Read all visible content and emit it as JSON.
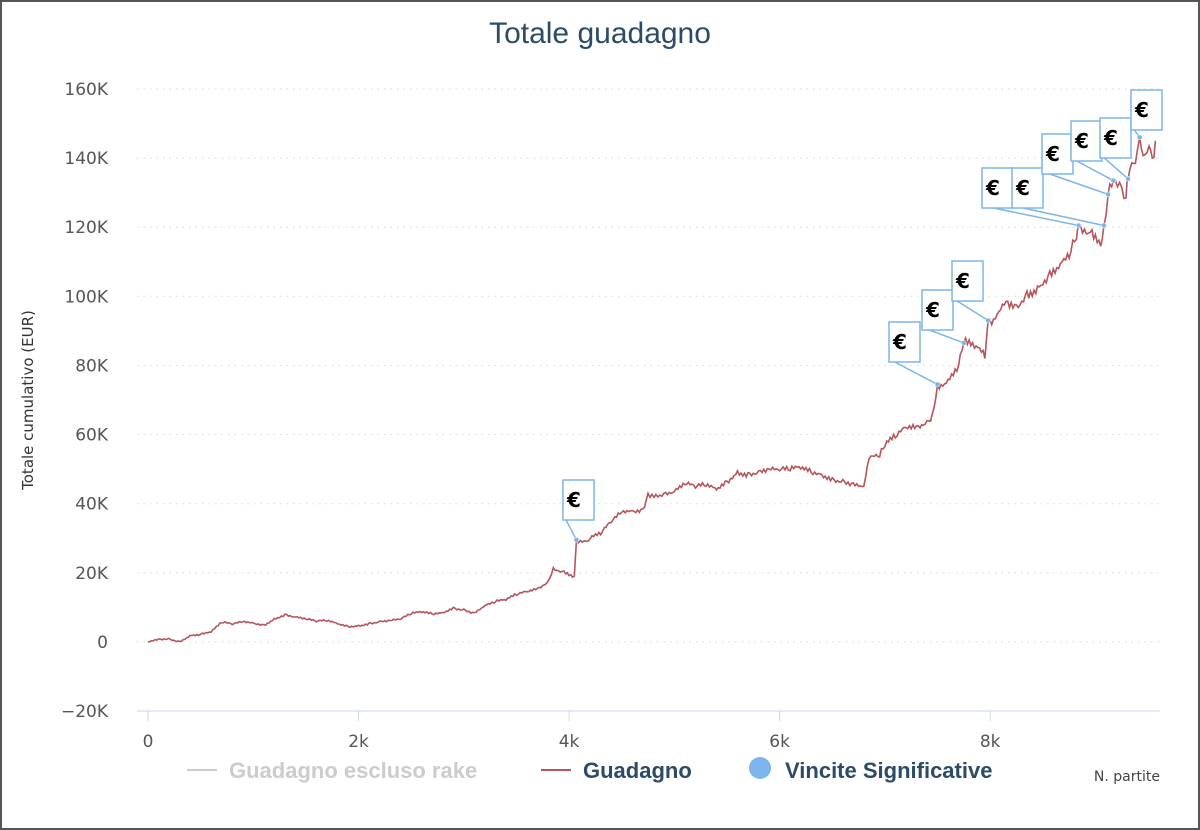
{
  "chart_data": {
    "type": "line",
    "title": "Totale guadagno",
    "xlabel": "N. partite",
    "ylabel": "Totale cumulativo (EUR)",
    "xlim": [
      0,
      9600
    ],
    "ylim": [
      -20000,
      160000
    ],
    "x_ticks": [
      {
        "value": 0,
        "label": "0"
      },
      {
        "value": 2000,
        "label": "2k"
      },
      {
        "value": 4000,
        "label": "4k"
      },
      {
        "value": 6000,
        "label": "6k"
      },
      {
        "value": 8000,
        "label": "8k"
      }
    ],
    "y_ticks": [
      {
        "value": -20000,
        "label": "−20K"
      },
      {
        "value": 0,
        "label": "0"
      },
      {
        "value": 20000,
        "label": "20K"
      },
      {
        "value": 40000,
        "label": "40K"
      },
      {
        "value": 60000,
        "label": "60K"
      },
      {
        "value": 80000,
        "label": "80K"
      },
      {
        "value": 100000,
        "label": "100K"
      },
      {
        "value": 120000,
        "label": "120K"
      },
      {
        "value": 140000,
        "label": "140K"
      },
      {
        "value": 160000,
        "label": "160K"
      }
    ],
    "grid": true,
    "legend_position": "bottom",
    "series": [
      {
        "name": "Guadagno escluso rake",
        "color": "#cccccc",
        "hidden": true,
        "points": []
      },
      {
        "name": "Guadagno",
        "color": "#b5565b",
        "points": [
          [
            0,
            0
          ],
          [
            100,
            800
          ],
          [
            200,
            1000
          ],
          [
            300,
            200
          ],
          [
            400,
            1900
          ],
          [
            500,
            2200
          ],
          [
            600,
            2800
          ],
          [
            700,
            5500
          ],
          [
            800,
            5000
          ],
          [
            900,
            5800
          ],
          [
            1000,
            5500
          ],
          [
            1100,
            5000
          ],
          [
            1200,
            6800
          ],
          [
            1300,
            8000
          ],
          [
            1400,
            7200
          ],
          [
            1500,
            6500
          ],
          [
            1600,
            5800
          ],
          [
            1700,
            6000
          ],
          [
            1800,
            5200
          ],
          [
            1900,
            4500
          ],
          [
            2000,
            4800
          ],
          [
            2100,
            5500
          ],
          [
            2200,
            6000
          ],
          [
            2300,
            6200
          ],
          [
            2400,
            6500
          ],
          [
            2500,
            8000
          ],
          [
            2600,
            8500
          ],
          [
            2700,
            8000
          ],
          [
            2800,
            8500
          ],
          [
            2900,
            10000
          ],
          [
            3000,
            9500
          ],
          [
            3100,
            8500
          ],
          [
            3200,
            10500
          ],
          [
            3300,
            11500
          ],
          [
            3400,
            12000
          ],
          [
            3500,
            13500
          ],
          [
            3600,
            14500
          ],
          [
            3700,
            15500
          ],
          [
            3800,
            17500
          ],
          [
            3850,
            21500
          ],
          [
            3950,
            20500
          ],
          [
            4050,
            19000
          ],
          [
            4070,
            29500
          ],
          [
            4200,
            29800
          ],
          [
            4300,
            31000
          ],
          [
            4400,
            34500
          ],
          [
            4500,
            37500
          ],
          [
            4600,
            38000
          ],
          [
            4700,
            38500
          ],
          [
            4750,
            43000
          ],
          [
            4900,
            43000
          ],
          [
            5000,
            43500
          ],
          [
            5100,
            45500
          ],
          [
            5200,
            44500
          ],
          [
            5300,
            45000
          ],
          [
            5400,
            44000
          ],
          [
            5500,
            46500
          ],
          [
            5600,
            49500
          ],
          [
            5700,
            49000
          ],
          [
            5800,
            49500
          ],
          [
            5900,
            50000
          ],
          [
            6000,
            49500
          ],
          [
            6100,
            49500
          ],
          [
            6200,
            50000
          ],
          [
            6300,
            49000
          ],
          [
            6400,
            48500
          ],
          [
            6500,
            47500
          ],
          [
            6600,
            47000
          ],
          [
            6700,
            46000
          ],
          [
            6800,
            45000
          ],
          [
            6850,
            53000
          ],
          [
            6950,
            53500
          ],
          [
            7000,
            56500
          ],
          [
            7100,
            59000
          ],
          [
            7200,
            62000
          ],
          [
            7300,
            62500
          ],
          [
            7400,
            64000
          ],
          [
            7450,
            66000
          ],
          [
            7500,
            74500
          ],
          [
            7600,
            76000
          ],
          [
            7700,
            80000
          ],
          [
            7750,
            86500
          ],
          [
            7850,
            85000
          ],
          [
            7950,
            82000
          ],
          [
            7980,
            93000
          ],
          [
            8050,
            93500
          ],
          [
            8150,
            98500
          ],
          [
            8250,
            97500
          ],
          [
            8350,
            101500
          ],
          [
            8450,
            103000
          ],
          [
            8550,
            106000
          ],
          [
            8650,
            108000
          ],
          [
            8750,
            111000
          ],
          [
            8820,
            116500
          ],
          [
            8840,
            120500
          ],
          [
            8950,
            118500
          ],
          [
            9050,
            114500
          ],
          [
            9080,
            120500
          ],
          [
            9120,
            129500
          ],
          [
            9170,
            133500
          ],
          [
            9250,
            131500
          ],
          [
            9290,
            128500
          ],
          [
            9310,
            134000
          ],
          [
            9380,
            138500
          ],
          [
            9420,
            146000
          ],
          [
            9470,
            141000
          ],
          [
            9510,
            143500
          ],
          [
            9540,
            140000
          ],
          [
            9570,
            145000
          ]
        ]
      },
      {
        "name": "Vincite Significative",
        "color": "#7cb5ec",
        "flag_label": "€",
        "points": [
          [
            4070,
            29500
          ],
          [
            7500,
            74500
          ],
          [
            7750,
            86500
          ],
          [
            7980,
            93000
          ],
          [
            8840,
            120500
          ],
          [
            9080,
            120500
          ],
          [
            9120,
            129500
          ],
          [
            9170,
            133500
          ],
          [
            9310,
            134000
          ],
          [
            9420,
            146000
          ]
        ]
      }
    ]
  }
}
